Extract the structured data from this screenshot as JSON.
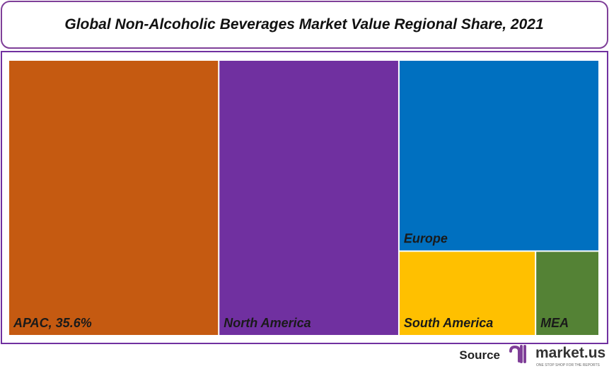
{
  "chart_data": {
    "type": "treemap",
    "title": "Global Non-Alcoholic Beverages Market Value Regional Share, 2021",
    "categories": [
      "APAC, 35.6%",
      "North America",
      "Europe",
      "South America",
      "MEA"
    ],
    "values": [
      35.6,
      30.5,
      23.5,
      7.1,
      3.3
    ],
    "colors": [
      "#c55a11",
      "#7030a0",
      "#0070c0",
      "#ffc000",
      "#548235"
    ]
  },
  "footer": {
    "source": "Source",
    "brand": "market.us",
    "tagline": "ONE STOP SHOP FOR THE REPORTS"
  }
}
